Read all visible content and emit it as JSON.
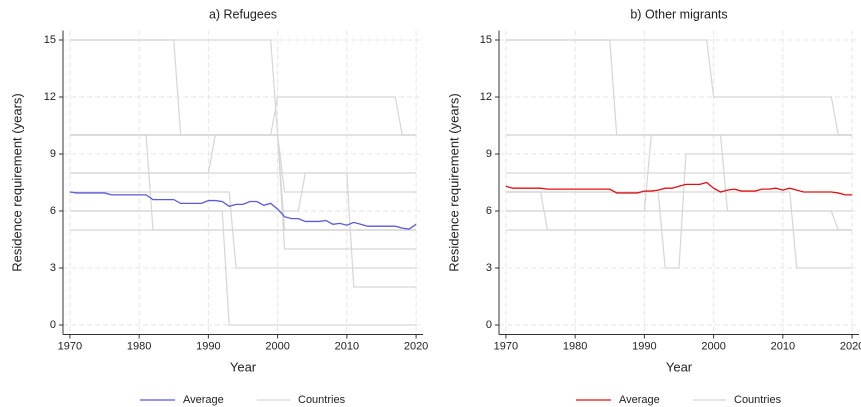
{
  "chart_data": [
    {
      "type": "line",
      "title": "a) Refugees",
      "xlabel": "Year",
      "ylabel": "Residence requirement (years)",
      "xlim": [
        1969,
        2021
      ],
      "ylim": [
        -0.5,
        15.5
      ],
      "xticks": [
        1970,
        1980,
        1990,
        2000,
        2010,
        2020
      ],
      "yticks": [
        0,
        3,
        6,
        9,
        12,
        15
      ],
      "grid": true,
      "x": [
        1970,
        1971,
        1972,
        1973,
        1974,
        1975,
        1976,
        1977,
        1978,
        1979,
        1980,
        1981,
        1982,
        1983,
        1984,
        1985,
        1986,
        1987,
        1988,
        1989,
        1990,
        1991,
        1992,
        1993,
        1994,
        1995,
        1996,
        1997,
        1998,
        1999,
        2000,
        2001,
        2002,
        2003,
        2004,
        2005,
        2006,
        2007,
        2008,
        2009,
        2010,
        2011,
        2012,
        2013,
        2014,
        2015,
        2016,
        2017,
        2018,
        2019,
        2020
      ],
      "series": [
        {
          "name": "Average",
          "color": "#5b5bd6",
          "values": [
            7.0,
            6.95,
            6.95,
            6.95,
            6.95,
            6.95,
            6.85,
            6.85,
            6.85,
            6.85,
            6.85,
            6.85,
            6.6,
            6.6,
            6.6,
            6.6,
            6.4,
            6.4,
            6.4,
            6.4,
            6.55,
            6.55,
            6.5,
            6.25,
            6.35,
            6.35,
            6.5,
            6.5,
            6.3,
            6.4,
            6.1,
            5.7,
            5.6,
            5.6,
            5.45,
            5.45,
            5.45,
            5.5,
            5.3,
            5.35,
            5.25,
            5.4,
            5.3,
            5.2,
            5.2,
            5.2,
            5.2,
            5.2,
            5.1,
            5.05,
            5.3
          ]
        }
      ],
      "countries": {
        "name": "Countries",
        "color": "#d6d6d6",
        "lines": [
          {
            "x": [
              1970,
              1985,
              1986,
              2020
            ],
            "values": [
              15,
              15,
              10,
              10
            ]
          },
          {
            "x": [
              1970,
              1999,
              2001,
              2020
            ],
            "values": [
              15,
              15,
              5,
              5
            ]
          },
          {
            "x": [
              1970,
              2020
            ],
            "values": [
              10,
              10
            ]
          },
          {
            "x": [
              1970,
              1990,
              1991,
              2000,
              2001,
              2020
            ],
            "values": [
              8,
              8,
              10,
              10,
              7,
              7
            ]
          },
          {
            "x": [
              1970,
              2020
            ],
            "values": [
              5,
              5
            ]
          },
          {
            "x": [
              1970,
              1992,
              1993,
              2020
            ],
            "values": [
              6,
              6,
              0,
              0
            ]
          },
          {
            "x": [
              1970,
              1981,
              1982,
              2020
            ],
            "values": [
              10,
              10,
              5,
              5
            ]
          },
          {
            "x": [
              1970,
              1993,
              1994,
              2020
            ],
            "values": [
              7,
              7,
              3,
              3
            ]
          },
          {
            "x": [
              1970,
              2000,
              2001,
              2020
            ],
            "values": [
              10,
              10,
              4,
              4
            ]
          },
          {
            "x": [
              1970,
              2020
            ],
            "values": [
              8,
              8
            ]
          },
          {
            "x": [
              1970,
              2003,
              2004,
              2010,
              2011,
              2020
            ],
            "values": [
              6,
              6,
              8,
              8,
              2,
              2
            ]
          },
          {
            "x": [
              1970,
              1999,
              2000,
              2017,
              2018,
              2020
            ],
            "values": [
              10,
              10,
              12,
              12,
              10,
              10
            ]
          }
        ]
      }
    },
    {
      "type": "line",
      "title": "b) Other migrants",
      "xlabel": "Year",
      "ylabel": "Residence requirement (years)",
      "xlim": [
        1969,
        2021
      ],
      "ylim": [
        -0.5,
        15.5
      ],
      "xticks": [
        1970,
        1980,
        1990,
        2000,
        2010,
        2020
      ],
      "yticks": [
        0,
        3,
        6,
        9,
        12,
        15
      ],
      "grid": true,
      "x": [
        1970,
        1971,
        1972,
        1973,
        1974,
        1975,
        1976,
        1977,
        1978,
        1979,
        1980,
        1981,
        1982,
        1983,
        1984,
        1985,
        1986,
        1987,
        1988,
        1989,
        1990,
        1991,
        1992,
        1993,
        1994,
        1995,
        1996,
        1997,
        1998,
        1999,
        2000,
        2001,
        2002,
        2003,
        2004,
        2005,
        2006,
        2007,
        2008,
        2009,
        2010,
        2011,
        2012,
        2013,
        2014,
        2015,
        2016,
        2017,
        2018,
        2019,
        2020
      ],
      "series": [
        {
          "name": "Average",
          "color": "#e01010",
          "values": [
            7.3,
            7.2,
            7.2,
            7.2,
            7.2,
            7.2,
            7.15,
            7.15,
            7.15,
            7.15,
            7.15,
            7.15,
            7.15,
            7.15,
            7.15,
            7.15,
            6.95,
            6.95,
            6.95,
            6.95,
            7.05,
            7.05,
            7.1,
            7.2,
            7.2,
            7.3,
            7.4,
            7.4,
            7.4,
            7.5,
            7.2,
            7.0,
            7.1,
            7.15,
            7.05,
            7.05,
            7.05,
            7.15,
            7.15,
            7.2,
            7.1,
            7.2,
            7.1,
            7.0,
            7.0,
            7.0,
            7.0,
            7.0,
            6.95,
            6.85,
            6.85
          ]
        }
      ],
      "countries": {
        "name": "Countries",
        "color": "#d6d6d6",
        "lines": [
          {
            "x": [
              1970,
              1985,
              1986,
              2020
            ],
            "values": [
              15,
              15,
              10,
              10
            ]
          },
          {
            "x": [
              1970,
              1999,
              2000,
              2017,
              2018,
              2020
            ],
            "values": [
              15,
              15,
              12,
              12,
              10,
              10
            ]
          },
          {
            "x": [
              1970,
              2020
            ],
            "values": [
              10,
              10
            ]
          },
          {
            "x": [
              1970,
              2020
            ],
            "values": [
              8,
              8
            ]
          },
          {
            "x": [
              1970,
              2020
            ],
            "values": [
              5,
              5
            ]
          },
          {
            "x": [
              1970,
              1975,
              1976,
              2020
            ],
            "values": [
              7,
              7,
              5,
              5
            ]
          },
          {
            "x": [
              1970,
              1992,
              1993,
              1995,
              1996,
              2020
            ],
            "values": [
              7,
              7,
              3,
              3,
              9,
              9
            ]
          },
          {
            "x": [
              1970,
              2011,
              2012,
              2020
            ],
            "values": [
              7,
              7,
              3,
              3
            ]
          },
          {
            "x": [
              1970,
              1990,
              1991,
              2020
            ],
            "values": [
              6,
              6,
              10,
              10
            ]
          },
          {
            "x": [
              1970,
              2001,
              2002,
              2020
            ],
            "values": [
              10,
              10,
              6,
              6
            ]
          },
          {
            "x": [
              1970,
              2017,
              2018,
              2020
            ],
            "values": [
              6,
              6,
              5,
              5
            ]
          }
        ]
      }
    }
  ]
}
